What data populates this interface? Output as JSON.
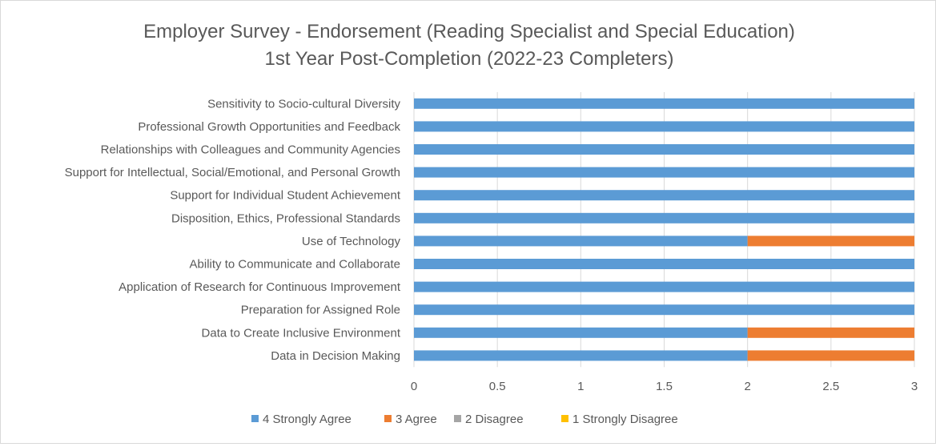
{
  "chart_data": {
    "type": "bar",
    "orientation": "horizontal",
    "stacked": true,
    "title": "Employer Survey - Endorsement (Reading Specialist and Special Education)",
    "subtitle": "1st Year Post-Completion (2022-23 Completers)",
    "xlabel": "",
    "ylabel": "",
    "xlim": [
      0,
      3
    ],
    "xticks": [
      "0",
      "0.5",
      "1",
      "1.5",
      "2",
      "2.5",
      "3"
    ],
    "grid": true,
    "legend_position": "bottom",
    "categories": [
      "Sensitivity to Socio-cultural Diversity",
      "Professional Growth Opportunities and Feedback",
      "Relationships with Colleagues and Community Agencies",
      "Support for Intellectual, Social/Emotional, and Personal Growth",
      "Support for Individual Student Achievement",
      "Disposition, Ethics, Professional Standards",
      "Use of Technology",
      "Ability to Communicate and Collaborate",
      "Application of Research for Continuous Improvement",
      "Preparation for Assigned Role",
      "Data to Create Inclusive Environment",
      "Data in Decision Making"
    ],
    "series": [
      {
        "name": "4 Strongly Agree",
        "color": "#5B9BD5",
        "values": [
          3,
          3,
          3,
          3,
          3,
          3,
          2,
          3,
          3,
          3,
          2,
          2
        ]
      },
      {
        "name": "3 Agree",
        "color": "#ED7D31",
        "values": [
          0,
          0,
          0,
          0,
          0,
          0,
          1,
          0,
          0,
          0,
          1,
          1
        ]
      },
      {
        "name": "2 Disagree",
        "color": "#A5A5A5",
        "values": [
          0,
          0,
          0,
          0,
          0,
          0,
          0,
          0,
          0,
          0,
          0,
          0
        ]
      },
      {
        "name": "1 Strongly Disagree",
        "color": "#FFC000",
        "values": [
          0,
          0,
          0,
          0,
          0,
          0,
          0,
          0,
          0,
          0,
          0,
          0
        ]
      }
    ]
  }
}
